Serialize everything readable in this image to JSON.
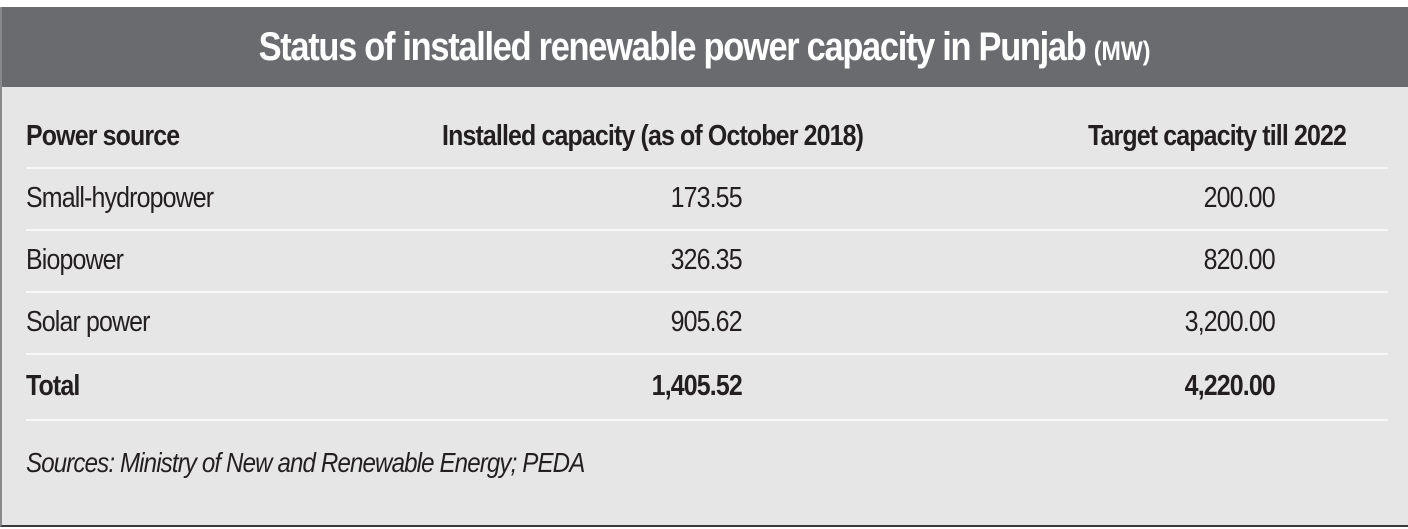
{
  "title": "Status of installed renewable power capacity in Punjab",
  "unit": "(MW)",
  "columns": [
    "Power source",
    "Installed capacity (as of October 2018)",
    "Target capacity till 2022"
  ],
  "rows": [
    {
      "source": "Small-hydropower",
      "installed": "173.55",
      "target": "200.00"
    },
    {
      "source": "Biopower",
      "installed": "326.35",
      "target": "820.00"
    },
    {
      "source": "Solar power",
      "installed": "905.62",
      "target": "3,200.00"
    }
  ],
  "total": {
    "source": "Total",
    "installed": "1,405.52",
    "target": "4,220.00"
  },
  "sources_note": "Sources: Ministry of New and Renewable Energy; PEDA"
}
